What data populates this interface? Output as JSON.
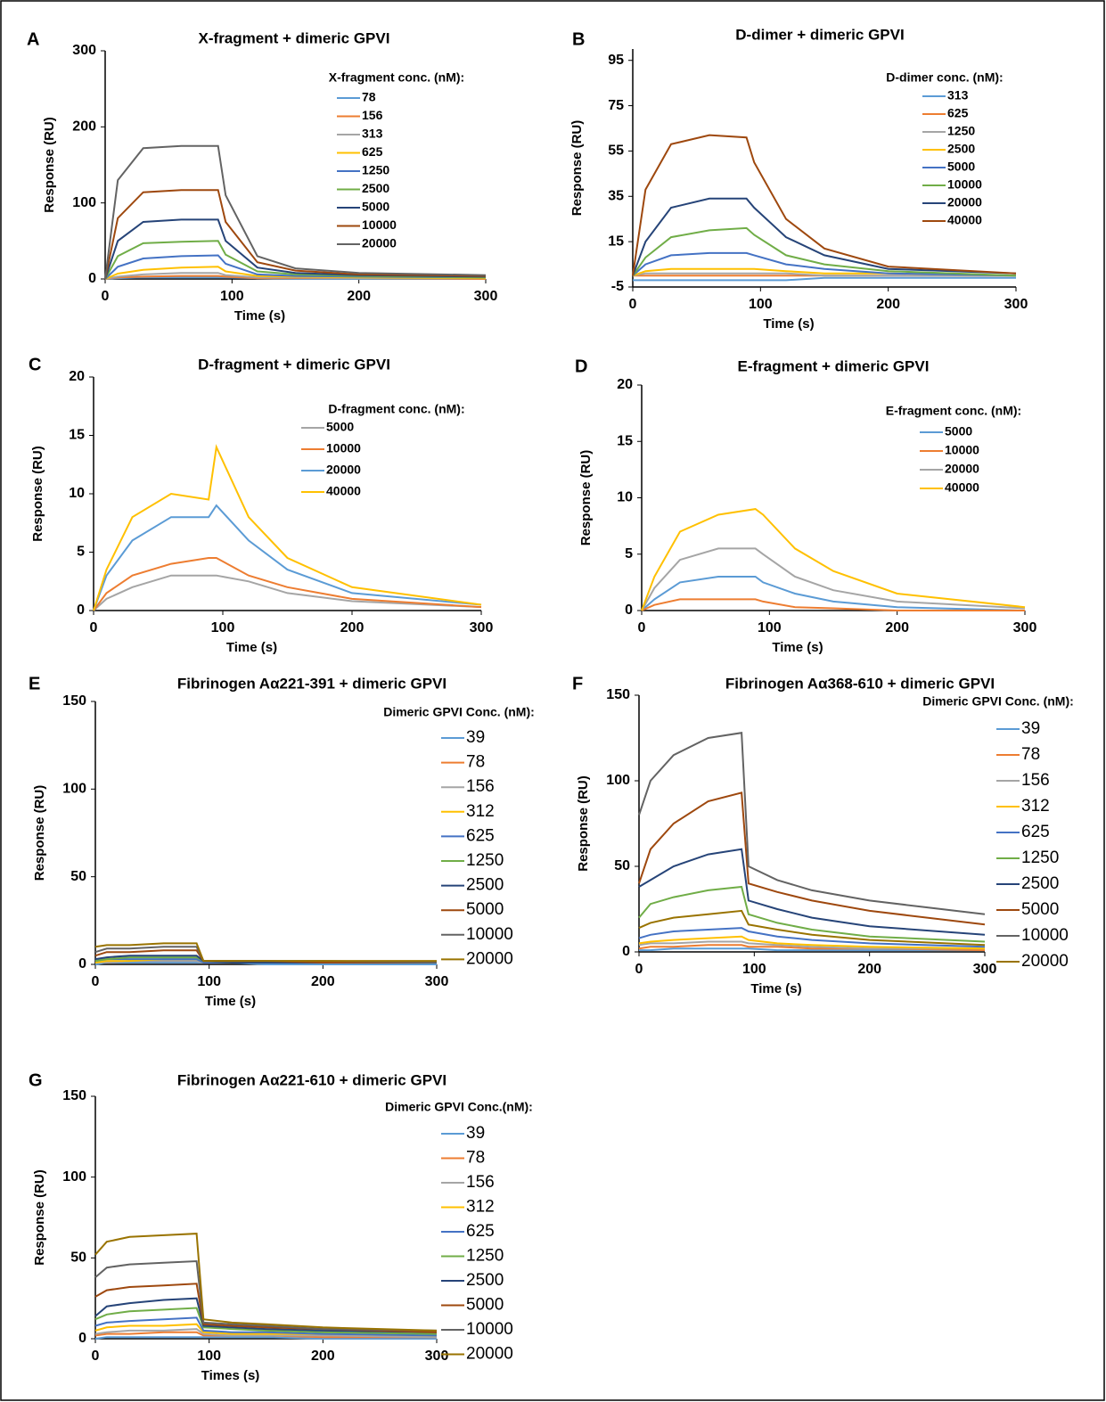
{
  "chart_data": [
    {
      "type": "line",
      "panel_label": "A",
      "title": "X-fragment   + dimeric GPVI",
      "x_label": "Time (s)",
      "y_label": "Response (RU)",
      "legend_title": "X-fragment conc. (nM):",
      "x": [
        0,
        10,
        30,
        60,
        89,
        95,
        120,
        150,
        200,
        300
      ],
      "xlim": [
        0,
        300
      ],
      "xticks": [
        0,
        100,
        200,
        300
      ],
      "ylim": [
        0,
        300
      ],
      "yticks": [
        0,
        100,
        200,
        300
      ],
      "series": [
        {
          "name": "78",
          "color": "#5b9bd5",
          "values": [
            0,
            1,
            2,
            2,
            2,
            2,
            1,
            0,
            0,
            0
          ]
        },
        {
          "name": "156",
          "color": "#ed7d31",
          "values": [
            0,
            2,
            3,
            4,
            4,
            3,
            1,
            1,
            1,
            0
          ]
        },
        {
          "name": "313",
          "color": "#a5a5a5",
          "values": [
            0,
            3,
            6,
            8,
            8,
            5,
            2,
            2,
            1,
            1
          ]
        },
        {
          "name": "625",
          "color": "#ffc000",
          "values": [
            0,
            7,
            12,
            15,
            16,
            10,
            4,
            3,
            2,
            1
          ]
        },
        {
          "name": "1250",
          "color": "#4472c4",
          "values": [
            0,
            16,
            27,
            30,
            31,
            20,
            6,
            4,
            3,
            2
          ]
        },
        {
          "name": "2500",
          "color": "#70ad47",
          "values": [
            0,
            30,
            47,
            49,
            50,
            32,
            10,
            6,
            4,
            2
          ]
        },
        {
          "name": "5000",
          "color": "#264478",
          "values": [
            0,
            50,
            75,
            78,
            78,
            50,
            15,
            8,
            5,
            3
          ]
        },
        {
          "name": "10000",
          "color": "#9e480e",
          "values": [
            0,
            80,
            114,
            117,
            117,
            75,
            22,
            11,
            6,
            4
          ]
        },
        {
          "name": "20000",
          "color": "#636363",
          "values": [
            0,
            130,
            172,
            175,
            175,
            110,
            30,
            14,
            8,
            5
          ]
        }
      ]
    },
    {
      "type": "line",
      "panel_label": "B",
      "title": "D-dimer + dimeric GPVI",
      "x_label": "Time (s)",
      "y_label": "Response (RU)",
      "legend_title": "D-dimer conc. (nM):",
      "x": [
        0,
        10,
        30,
        60,
        89,
        95,
        120,
        150,
        200,
        300
      ],
      "xlim": [
        0,
        300
      ],
      "xticks": [
        0,
        100,
        200,
        300
      ],
      "ylim": [
        -5,
        100
      ],
      "yticks": [
        -5,
        15,
        35,
        55,
        75,
        95
      ],
      "series": [
        {
          "name": "313",
          "color": "#5b9bd5",
          "values": [
            -2,
            -2,
            -2,
            -2,
            -2,
            -2,
            -2,
            -1,
            -1,
            -1
          ]
        },
        {
          "name": "625",
          "color": "#ed7d31",
          "values": [
            0,
            0,
            0,
            0,
            0,
            0,
            0,
            0,
            0,
            0
          ]
        },
        {
          "name": "1250",
          "color": "#a5a5a5",
          "values": [
            0,
            1,
            1,
            1,
            1,
            1,
            1,
            0,
            0,
            0
          ]
        },
        {
          "name": "2500",
          "color": "#ffc000",
          "values": [
            0,
            2,
            3,
            3,
            3,
            3,
            2,
            1,
            1,
            0
          ]
        },
        {
          "name": "5000",
          "color": "#4472c4",
          "values": [
            0,
            5,
            9,
            10,
            10,
            9,
            5,
            3,
            1,
            0
          ]
        },
        {
          "name": "10000",
          "color": "#70ad47",
          "values": [
            0,
            8,
            17,
            20,
            21,
            18,
            9,
            5,
            2,
            0
          ]
        },
        {
          "name": "20000",
          "color": "#264478",
          "values": [
            0,
            15,
            30,
            34,
            34,
            30,
            17,
            9,
            3,
            1
          ]
        },
        {
          "name": "40000",
          "color": "#9e480e",
          "values": [
            0,
            38,
            58,
            62,
            61,
            50,
            25,
            12,
            4,
            1
          ]
        }
      ]
    },
    {
      "type": "line",
      "panel_label": "C",
      "title": "D-fragment + dimeric GPVI",
      "x_label": "Time (s)",
      "y_label": "Response (RU)",
      "legend_title": "D-fragment conc. (nM):",
      "x": [
        0,
        10,
        30,
        60,
        89,
        95,
        120,
        150,
        200,
        300
      ],
      "xlim": [
        0,
        300
      ],
      "xticks": [
        0,
        100,
        200,
        300
      ],
      "ylim": [
        0,
        20
      ],
      "yticks": [
        0,
        5,
        10,
        15,
        20
      ],
      "series": [
        {
          "name": "5000",
          "color": "#a5a5a5",
          "values": [
            0,
            1,
            2,
            3,
            3,
            3,
            2.5,
            1.5,
            0.8,
            0.3
          ]
        },
        {
          "name": "10000",
          "color": "#ed7d31",
          "values": [
            0,
            1.5,
            3,
            4,
            4.5,
            4.5,
            3,
            2,
            1,
            0.3
          ]
        },
        {
          "name": "20000",
          "color": "#5b9bd5",
          "values": [
            0,
            3,
            6,
            8,
            8,
            9,
            6,
            3.5,
            1.5,
            0.5
          ]
        },
        {
          "name": "40000",
          "color": "#ffc000",
          "values": [
            0,
            3.5,
            8,
            10,
            9.5,
            14,
            8,
            4.5,
            2,
            0.5
          ]
        }
      ]
    },
    {
      "type": "line",
      "panel_label": "D",
      "title": "E-fragment  + dimeric GPVI",
      "x_label": "Time (s)",
      "y_label": "Response (RU)",
      "legend_title": "E-fragment conc. (nM):",
      "x": [
        0,
        10,
        30,
        60,
        89,
        95,
        120,
        150,
        200,
        300
      ],
      "xlim": [
        0,
        300
      ],
      "xticks": [
        0,
        100,
        200,
        300
      ],
      "ylim": [
        0,
        20
      ],
      "yticks": [
        0,
        5,
        10,
        15,
        20
      ],
      "series": [
        {
          "name": "5000",
          "color": "#5b9bd5",
          "values": [
            0,
            1,
            2.5,
            3,
            3,
            2.5,
            1.5,
            0.8,
            0.3,
            0
          ]
        },
        {
          "name": "10000",
          "color": "#ed7d31",
          "values": [
            0,
            0.5,
            1,
            1,
            1,
            0.8,
            0.3,
            0.2,
            0,
            0
          ]
        },
        {
          "name": "20000",
          "color": "#a5a5a5",
          "values": [
            0,
            2,
            4.5,
            5.5,
            5.5,
            5,
            3,
            1.8,
            0.8,
            0.2
          ]
        },
        {
          "name": "40000",
          "color": "#ffc000",
          "values": [
            0,
            3,
            7,
            8.5,
            9,
            8.5,
            5.5,
            3.5,
            1.5,
            0.3
          ]
        }
      ]
    },
    {
      "type": "line",
      "panel_label": "E",
      "title": "Fibrinogen Aα221-391 + dimeric GPVI",
      "x_label": "Time (s)",
      "y_label": "Response (RU)",
      "legend_title": "Dimeric GPVI Conc. (nM):",
      "x": [
        0,
        10,
        30,
        60,
        89,
        95,
        120,
        150,
        200,
        300
      ],
      "xlim": [
        0,
        300
      ],
      "xticks": [
        0,
        100,
        200,
        300
      ],
      "ylim": [
        0,
        150
      ],
      "yticks": [
        0,
        50,
        100,
        150
      ],
      "series": [
        {
          "name": "39",
          "color": "#5b9bd5",
          "values": [
            0,
            1,
            1,
            1,
            1,
            1,
            1,
            0,
            0,
            0
          ]
        },
        {
          "name": "78",
          "color": "#ed7d31",
          "values": [
            1,
            1,
            2,
            2,
            2,
            1,
            1,
            1,
            1,
            1
          ]
        },
        {
          "name": "156",
          "color": "#a5a5a5",
          "values": [
            1,
            1,
            2,
            2,
            2,
            1,
            1,
            1,
            1,
            1
          ]
        },
        {
          "name": "312",
          "color": "#ffc000",
          "values": [
            1,
            2,
            2,
            3,
            3,
            1,
            1,
            1,
            1,
            1
          ]
        },
        {
          "name": "625",
          "color": "#4472c4",
          "values": [
            2,
            3,
            3,
            3,
            3,
            1,
            1,
            1,
            1,
            1
          ]
        },
        {
          "name": "1250",
          "color": "#70ad47",
          "values": [
            2,
            3,
            4,
            4,
            4,
            2,
            1,
            1,
            1,
            1
          ]
        },
        {
          "name": "2500",
          "color": "#264478",
          "values": [
            3,
            4,
            5,
            5,
            5,
            2,
            1,
            1,
            1,
            1
          ]
        },
        {
          "name": "5000",
          "color": "#9e480e",
          "values": [
            5,
            7,
            7,
            8,
            8,
            2,
            2,
            2,
            1,
            1
          ]
        },
        {
          "name": "10000",
          "color": "#636363",
          "values": [
            7,
            9,
            9,
            10,
            10,
            2,
            2,
            2,
            2,
            1
          ]
        },
        {
          "name": "20000",
          "color": "#997300",
          "values": [
            10,
            11,
            11,
            12,
            12,
            2,
            2,
            2,
            2,
            2
          ]
        }
      ]
    },
    {
      "type": "line",
      "panel_label": "F",
      "title": "Fibrinogen Aα368-610 + dimeric GPVI",
      "x_label": "Time (s)",
      "y_label": "Response (RU)",
      "legend_title": "Dimeric GPVI Conc. (nM):",
      "x": [
        0,
        10,
        30,
        60,
        89,
        95,
        120,
        150,
        200,
        300
      ],
      "xlim": [
        0,
        300
      ],
      "xticks": [
        0,
        100,
        200,
        300
      ],
      "ylim": [
        0,
        150
      ],
      "yticks": [
        0,
        50,
        100,
        150
      ],
      "series": [
        {
          "name": "39",
          "color": "#5b9bd5",
          "values": [
            1,
            1,
            2,
            2,
            2,
            2,
            1,
            1,
            1,
            1
          ]
        },
        {
          "name": "78",
          "color": "#ed7d31",
          "values": [
            2,
            3,
            3,
            4,
            4,
            3,
            3,
            2,
            2,
            1
          ]
        },
        {
          "name": "156",
          "color": "#a5a5a5",
          "values": [
            4,
            5,
            5,
            6,
            6,
            5,
            4,
            3,
            2,
            2
          ]
        },
        {
          "name": "312",
          "color": "#ffc000",
          "values": [
            5,
            6,
            7,
            8,
            9,
            7,
            5,
            4,
            3,
            2
          ]
        },
        {
          "name": "625",
          "color": "#4472c4",
          "values": [
            8,
            10,
            12,
            13,
            14,
            12,
            9,
            7,
            5,
            3
          ]
        },
        {
          "name": "1250",
          "color": "#70ad47",
          "values": [
            20,
            28,
            32,
            36,
            38,
            22,
            17,
            13,
            9,
            6
          ]
        },
        {
          "name": "2500",
          "color": "#264478",
          "values": [
            38,
            42,
            50,
            57,
            60,
            30,
            25,
            20,
            15,
            10
          ]
        },
        {
          "name": "5000",
          "color": "#9e480e",
          "values": [
            40,
            60,
            75,
            88,
            93,
            40,
            35,
            30,
            24,
            16
          ]
        },
        {
          "name": "10000",
          "color": "#636363",
          "values": [
            80,
            100,
            115,
            125,
            128,
            50,
            42,
            36,
            30,
            22
          ]
        },
        {
          "name": "20000",
          "color": "#997300",
          "values": [
            14,
            17,
            20,
            22,
            24,
            16,
            13,
            10,
            7,
            4
          ]
        }
      ]
    },
    {
      "type": "line",
      "panel_label": "G",
      "title": "Fibrinogen Aα221-610 + dimeric GPVI",
      "x_label": "Times (s)",
      "y_label": "Response (RU)",
      "legend_title": "Dimeric GPVI Conc.(nM):",
      "x": [
        0,
        10,
        30,
        60,
        89,
        95,
        120,
        150,
        200,
        300
      ],
      "xlim": [
        0,
        300
      ],
      "xticks": [
        0,
        100,
        200,
        300
      ],
      "ylim": [
        0,
        150
      ],
      "yticks": [
        0,
        50,
        100,
        150
      ],
      "series": [
        {
          "name": "39",
          "color": "#5b9bd5",
          "values": [
            0,
            1,
            1,
            1,
            1,
            1,
            1,
            1,
            0,
            0
          ]
        },
        {
          "name": "78",
          "color": "#ed7d31",
          "values": [
            2,
            3,
            3,
            4,
            4,
            2,
            2,
            2,
            1,
            1
          ]
        },
        {
          "name": "156",
          "color": "#a5a5a5",
          "values": [
            3,
            4,
            5,
            5,
            6,
            3,
            2,
            2,
            2,
            1
          ]
        },
        {
          "name": "312",
          "color": "#ffc000",
          "values": [
            5,
            7,
            8,
            8,
            9,
            4,
            3,
            3,
            3,
            2
          ]
        },
        {
          "name": "625",
          "color": "#4472c4",
          "values": [
            8,
            10,
            11,
            12,
            13,
            5,
            4,
            4,
            3,
            2
          ]
        },
        {
          "name": "1250",
          "color": "#70ad47",
          "values": [
            12,
            15,
            17,
            18,
            19,
            7,
            6,
            5,
            4,
            3
          ]
        },
        {
          "name": "2500",
          "color": "#264478",
          "values": [
            14,
            20,
            22,
            24,
            25,
            8,
            7,
            6,
            5,
            4
          ]
        },
        {
          "name": "5000",
          "color": "#9e480e",
          "values": [
            26,
            30,
            32,
            33,
            34,
            9,
            8,
            7,
            6,
            4
          ]
        },
        {
          "name": "10000",
          "color": "#636363",
          "values": [
            38,
            44,
            46,
            47,
            48,
            10,
            9,
            8,
            6,
            5
          ]
        },
        {
          "name": "20000",
          "color": "#997300",
          "values": [
            52,
            60,
            63,
            64,
            65,
            12,
            10,
            9,
            7,
            5
          ]
        }
      ]
    }
  ]
}
